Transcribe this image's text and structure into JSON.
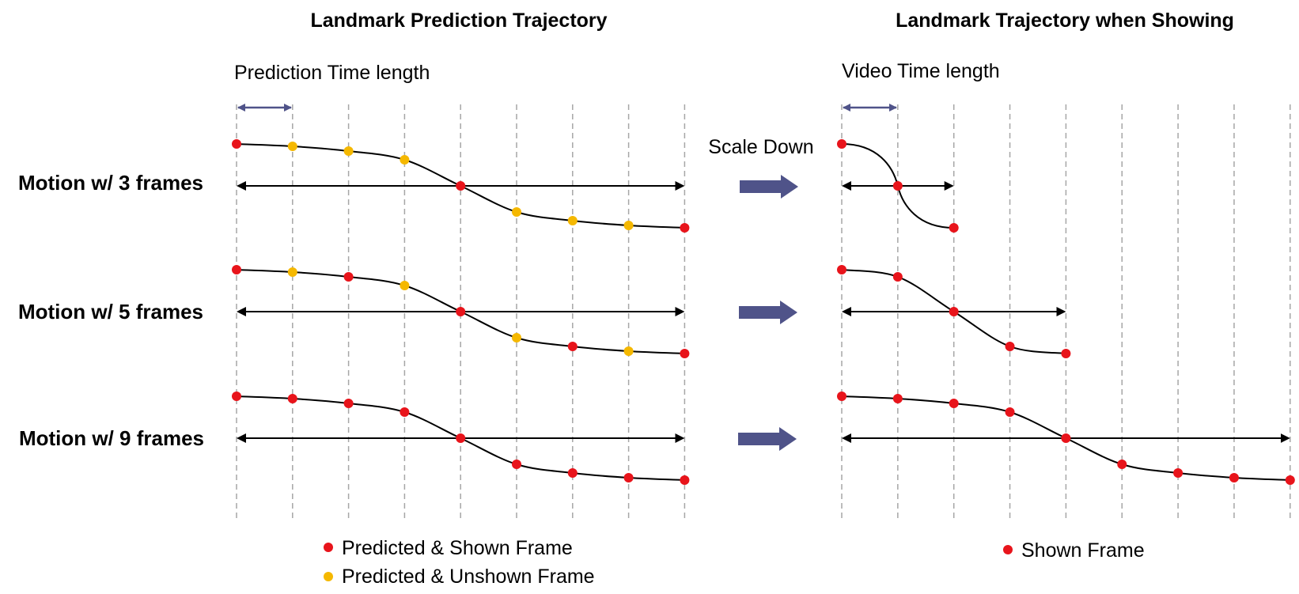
{
  "left_panel": {
    "title": "Landmark Prediction Trajectory",
    "time_label": "Prediction Time length",
    "rows": [
      {
        "label": "Motion w/ 3 frames",
        "point_colors": [
          "red",
          "yellow",
          "yellow",
          "yellow",
          "red",
          "yellow",
          "yellow",
          "yellow",
          "red"
        ]
      },
      {
        "label": "Motion w/ 5 frames",
        "point_colors": [
          "red",
          "yellow",
          "red",
          "yellow",
          "red",
          "yellow",
          "red",
          "yellow",
          "red"
        ]
      },
      {
        "label": "Motion w/ 9 frames",
        "point_colors": [
          "red",
          "red",
          "red",
          "red",
          "red",
          "red",
          "red",
          "red",
          "red"
        ]
      }
    ],
    "legend": [
      {
        "label": "Predicted & Shown Frame",
        "color": "#e8141b"
      },
      {
        "label": "Predicted & Unshown Frame",
        "color": "#f5b800"
      }
    ]
  },
  "middle": {
    "scale_label": "Scale Down"
  },
  "right_panel": {
    "title": "Landmark Trajectory when Showing",
    "time_label": "Video Time length",
    "rows": [
      {
        "frames": 3
      },
      {
        "frames": 5
      },
      {
        "frames": 9
      }
    ],
    "legend": [
      {
        "label": "Shown Frame",
        "color": "#e8141b"
      }
    ]
  },
  "colors": {
    "shown": "#e8141b",
    "unshown": "#f5b800",
    "arrow": "#4f5389",
    "grid": "#a6a6a6"
  }
}
